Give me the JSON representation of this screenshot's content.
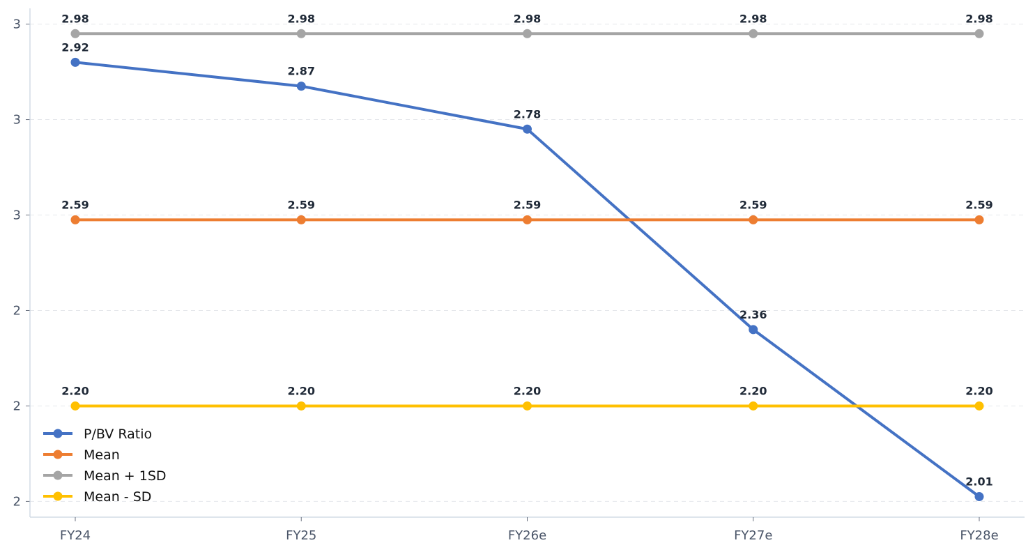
{
  "chart_data": {
    "type": "line",
    "title": "",
    "xlabel": "",
    "ylabel": "",
    "categories": [
      "FY24",
      "FY25",
      "FY26e",
      "FY27e",
      "FY28e"
    ],
    "y_ticks": [
      {
        "value": 2.0,
        "label": "2"
      },
      {
        "value": 2.2,
        "label": "2"
      },
      {
        "value": 2.4,
        "label": "2"
      },
      {
        "value": 2.6,
        "label": "3"
      },
      {
        "value": 2.8,
        "label": "3"
      },
      {
        "value": 3.0,
        "label": "3"
      }
    ],
    "ylim": [
      1.967,
      3.033
    ],
    "grid": "horizontal dashed",
    "legend_position": "bottom-left",
    "series": [
      {
        "name": "P/BV Ratio",
        "color": "#4472c4",
        "values": [
          2.92,
          2.87,
          2.78,
          2.36,
          2.01
        ],
        "labels": [
          "2.92",
          "2.87",
          "2.78",
          "2.36",
          "2.01"
        ]
      },
      {
        "name": "Mean",
        "color": "#ed7d31",
        "values": [
          2.59,
          2.59,
          2.59,
          2.59,
          2.59
        ],
        "labels": [
          "2.59",
          "2.59",
          "2.59",
          "2.59",
          "2.59"
        ]
      },
      {
        "name": "Mean + 1SD",
        "color": "#a5a5a5",
        "values": [
          2.98,
          2.98,
          2.98,
          2.98,
          2.98
        ],
        "labels": [
          "2.98",
          "2.98",
          "2.98",
          "2.98",
          "2.98"
        ]
      },
      {
        "name": "Mean - SD",
        "color": "#ffc000",
        "values": [
          2.2,
          2.2,
          2.2,
          2.2,
          2.2
        ],
        "labels": [
          "2.20",
          "2.20",
          "2.20",
          "2.20",
          "2.20"
        ]
      }
    ]
  }
}
